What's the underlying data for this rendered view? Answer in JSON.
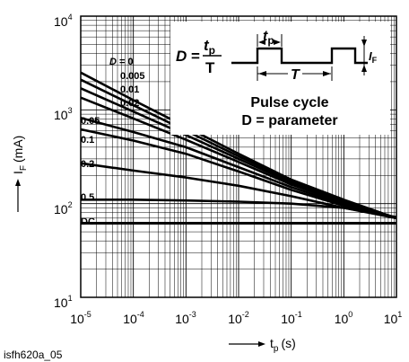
{
  "chart_data": {
    "type": "line",
    "title": "",
    "xlabel": "t",
    "xlabel_sub": "p",
    "xlabel_unit": "(s)",
    "ylabel": "I",
    "ylabel_sub": "F",
    "ylabel_unit": "(mA)",
    "xscale": "log",
    "yscale": "log",
    "xlim": [
      1e-05,
      10
    ],
    "ylim": [
      10,
      10000
    ],
    "grid": true,
    "x_ticks": [
      {
        "value": 1e-05,
        "base": "10",
        "exp": "-5"
      },
      {
        "value": 0.0001,
        "base": "10",
        "exp": "-4"
      },
      {
        "value": 0.001,
        "base": "10",
        "exp": "-3"
      },
      {
        "value": 0.01,
        "base": "10",
        "exp": "-2"
      },
      {
        "value": 0.1,
        "base": "10",
        "exp": "-1"
      },
      {
        "value": 1,
        "base": "10",
        "exp": "0"
      },
      {
        "value": 10,
        "base": "10",
        "exp": "1"
      }
    ],
    "y_ticks": [
      {
        "value": 10,
        "base": "10",
        "exp": "1"
      },
      {
        "value": 100,
        "base": "10",
        "exp": "2"
      },
      {
        "value": 1000,
        "base": "10",
        "exp": "3"
      },
      {
        "value": 10000,
        "base": "10",
        "exp": "4"
      }
    ],
    "series": [
      {
        "name": "D = 0",
        "label": "0",
        "x": [
          1e-05,
          0.0001,
          0.001,
          0.01,
          0.1,
          1,
          10
        ],
        "y": [
          2500,
          1270,
          660,
          340,
          180,
          110,
          70
        ]
      },
      {
        "name": "D = 0.005",
        "label": "0.005",
        "x": [
          1e-05,
          0.0001,
          0.001,
          0.01,
          0.1,
          1,
          10
        ],
        "y": [
          2100,
          1120,
          600,
          320,
          175,
          107,
          70
        ]
      },
      {
        "name": "D = 0.01",
        "label": "0.01",
        "x": [
          1e-05,
          0.0001,
          0.001,
          0.01,
          0.1,
          1,
          10
        ],
        "y": [
          1700,
          960,
          540,
          300,
          168,
          105,
          70
        ]
      },
      {
        "name": "D = 0.02",
        "label": "0.02",
        "x": [
          1e-05,
          0.0001,
          0.001,
          0.01,
          0.1,
          1,
          10
        ],
        "y": [
          1350,
          810,
          480,
          278,
          160,
          102,
          70
        ]
      },
      {
        "name": "D = 0.05",
        "label": "0.05",
        "x": [
          1e-05,
          0.0001,
          0.001,
          0.01,
          0.1,
          1,
          10
        ],
        "y": [
          820,
          580,
          400,
          245,
          150,
          98,
          70
        ]
      },
      {
        "name": "D = 0.1",
        "label": "0.1",
        "x": [
          1e-05,
          0.0001,
          0.001,
          0.01,
          0.1,
          1,
          10
        ],
        "y": [
          620,
          470,
          340,
          220,
          140,
          95,
          70
        ]
      },
      {
        "name": "D = 0.2",
        "label": "0.2",
        "x": [
          1e-05,
          0.0001,
          0.001,
          0.01,
          0.1,
          1,
          10
        ],
        "y": [
          270,
          225,
          190,
          155,
          120,
          90,
          70
        ]
      },
      {
        "name": "D = 0.5",
        "label": "0.5",
        "x": [
          1e-05,
          0.0001,
          0.001,
          0.01,
          0.1,
          1,
          10
        ],
        "y": [
          110,
          110,
          108,
          105,
          100,
          90,
          72
        ]
      },
      {
        "name": "DC",
        "label": "DC",
        "x": [
          1e-05,
          10
        ],
        "y": [
          62,
          62
        ]
      }
    ],
    "inset": {
      "formula_lhs": "D =",
      "formula_num": "t",
      "formula_num_sub": "p",
      "formula_den": "T",
      "pulse_label_tp": "t",
      "pulse_label_tp_sub": "p",
      "pulse_label_T": "T",
      "pulse_label_I": "I",
      "pulse_label_I_sub": "F",
      "caption_line1": "Pulse cycle",
      "caption_line2": "D = parameter"
    }
  },
  "figure_id": "isfh620a_05"
}
